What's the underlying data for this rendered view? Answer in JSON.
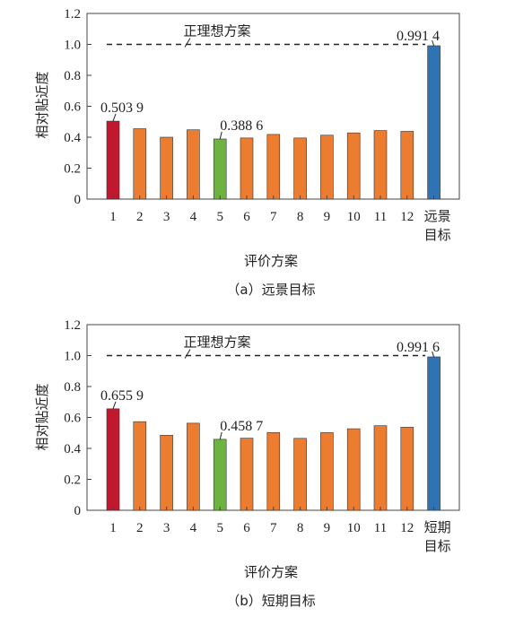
{
  "chart_data": [
    {
      "type": "bar",
      "caption": "（a）远景目标",
      "xlabel": "评价方案",
      "ylabel": "相对贴近度",
      "ylim": [
        0,
        1.2
      ],
      "yticks": [
        "0",
        "0.2",
        "0.4",
        "0.6",
        "0.8",
        "1.0",
        "1.2"
      ],
      "categories": [
        "1",
        "2",
        "3",
        "4",
        "5",
        "6",
        "7",
        "8",
        "9",
        "10",
        "11",
        "12",
        "远景目标"
      ],
      "values": [
        0.5039,
        0.455,
        0.4,
        0.448,
        0.3886,
        0.395,
        0.418,
        0.395,
        0.413,
        0.428,
        0.443,
        0.438,
        0.9914
      ],
      "bar_colors": [
        "#c0182e",
        "#ec7c30",
        "#ec7c30",
        "#ec7c30",
        "#6cb33f",
        "#ec7c30",
        "#ec7c30",
        "#ec7c30",
        "#ec7c30",
        "#ec7c30",
        "#ec7c30",
        "#ec7c30",
        "#2e74b5"
      ],
      "reference_line": {
        "label": "正理想方案",
        "value": 1.0
      },
      "annotations": [
        {
          "bar": 0,
          "text": "0.503 9"
        },
        {
          "bar": 4,
          "text": "0.388 6"
        },
        {
          "bar": 12,
          "text": "0.991 4"
        }
      ]
    },
    {
      "type": "bar",
      "caption": "（b）短期目标",
      "xlabel": "评价方案",
      "ylabel": "相对贴近度",
      "ylim": [
        0,
        1.2
      ],
      "yticks": [
        "0",
        "0.2",
        "0.4",
        "0.6",
        "0.8",
        "1.0",
        "1.2"
      ],
      "categories": [
        "1",
        "2",
        "3",
        "4",
        "5",
        "6",
        "7",
        "8",
        "9",
        "10",
        "11",
        "12",
        "短期目标"
      ],
      "values": [
        0.6559,
        0.573,
        0.485,
        0.563,
        0.4587,
        0.466,
        0.503,
        0.465,
        0.502,
        0.527,
        0.547,
        0.537,
        0.9916
      ],
      "bar_colors": [
        "#c0182e",
        "#ec7c30",
        "#ec7c30",
        "#ec7c30",
        "#6cb33f",
        "#ec7c30",
        "#ec7c30",
        "#ec7c30",
        "#ec7c30",
        "#ec7c30",
        "#ec7c30",
        "#ec7c30",
        "#2e74b5"
      ],
      "reference_line": {
        "label": "正理想方案",
        "value": 1.0
      },
      "annotations": [
        {
          "bar": 0,
          "text": "0.655 9"
        },
        {
          "bar": 4,
          "text": "0.458 7"
        },
        {
          "bar": 12,
          "text": "0.991 6"
        }
      ]
    }
  ]
}
